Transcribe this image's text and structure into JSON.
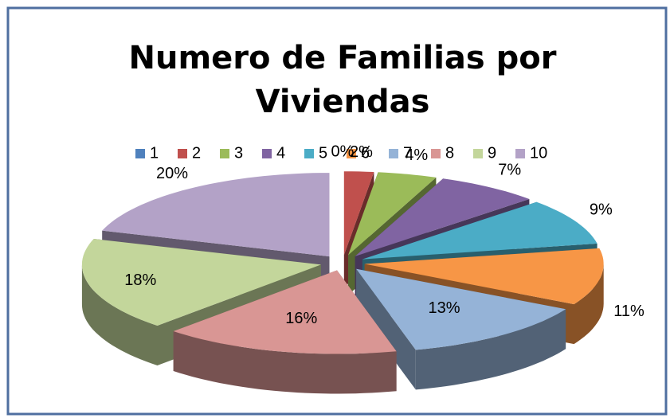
{
  "chart_data": {
    "type": "pie",
    "title": "Numero de Familias por Viviendas",
    "categories": [
      "1",
      "2",
      "3",
      "4",
      "5",
      "6",
      "7",
      "8",
      "9",
      "10"
    ],
    "values": [
      0,
      2,
      4,
      7,
      9,
      11,
      13,
      16,
      18,
      20
    ],
    "value_labels": [
      "0%",
      "2%",
      "4%",
      "7%",
      "9%",
      "11%",
      "13%",
      "16%",
      "18%",
      "20%"
    ],
    "colors": [
      "#4f81bd",
      "#c0504d",
      "#9bbb59",
      "#8064a2",
      "#4bacc6",
      "#f79646",
      "#95b3d7",
      "#d99694",
      "#c3d69b",
      "#b3a2c7"
    ],
    "legend": "top"
  }
}
